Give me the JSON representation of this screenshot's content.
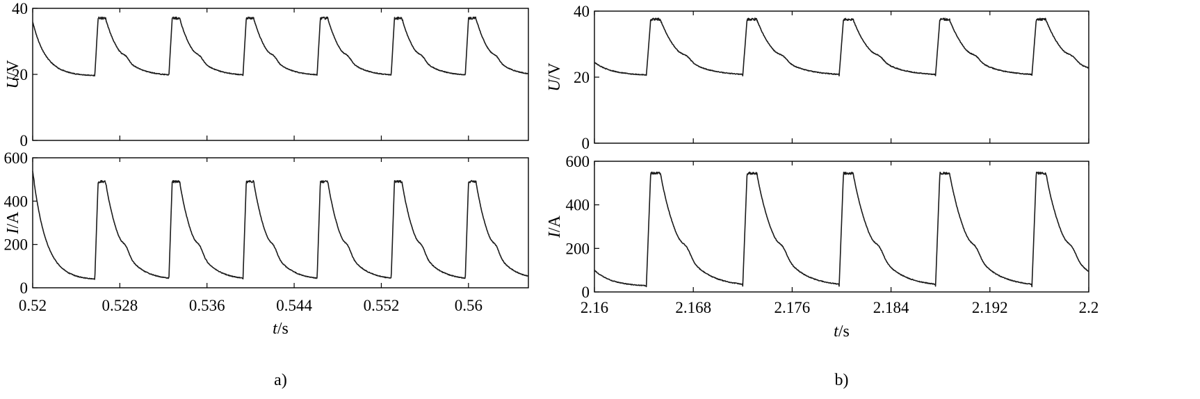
{
  "colors": {
    "trace": "#1a1a1a",
    "frame": "#000000",
    "background": "#ffffff"
  },
  "chart_data": [
    {
      "type": "line",
      "panel": "a)",
      "xlabel": {
        "italic": "t",
        "rest": "/s"
      },
      "x_ticks": [
        0.52,
        0.528,
        0.536,
        0.544,
        0.552,
        0.56
      ],
      "x_tick_labels": [
        "0.52",
        "0.528",
        "0.536",
        "0.544",
        "0.552",
        "0.56"
      ],
      "xlim": [
        0.52,
        0.5655
      ],
      "pulse_period": 0.0068,
      "pulse_rise_times": [
        0.5257,
        0.5325,
        0.5393,
        0.5461,
        0.5529,
        0.5597
      ],
      "subplots": [
        {
          "ylabel": {
            "italic": "U",
            "rest": "/V"
          },
          "ylim": [
            0,
            40
          ],
          "y_ticks": [
            0,
            20,
            40
          ],
          "y_tick_labels": [
            "0",
            "20",
            "40"
          ],
          "initial_value": 36,
          "base_value": 19.5,
          "peak_value": 37
        },
        {
          "ylabel": {
            "italic": "I",
            "rest": "/A"
          },
          "ylim": [
            0,
            600
          ],
          "y_ticks": [
            0,
            200,
            400,
            600
          ],
          "y_tick_labels": [
            "0",
            "200",
            "400",
            "600"
          ],
          "initial_value": 540,
          "base_value": 35,
          "peak_value": 490
        }
      ]
    },
    {
      "type": "line",
      "panel": "b)",
      "xlabel": {
        "italic": "t",
        "rest": "/s"
      },
      "x_ticks": [
        2.16,
        2.168,
        2.176,
        2.184,
        2.192,
        2.2
      ],
      "x_tick_labels": [
        "2.16",
        "2.168",
        "2.176",
        "2.184",
        "2.192",
        "2.2"
      ],
      "xlim": [
        2.16,
        2.2
      ],
      "pulse_period": 0.0078,
      "pulse_rise_times": [
        2.1642,
        2.172,
        2.1798,
        2.1876,
        2.1954
      ],
      "subplots": [
        {
          "ylabel": {
            "italic": "U",
            "rest": "/V"
          },
          "ylim": [
            0,
            40
          ],
          "y_ticks": [
            0,
            20,
            40
          ],
          "y_tick_labels": [
            "0",
            "20",
            "40"
          ],
          "initial_value": 24.5,
          "base_value": 20.5,
          "peak_value": 37.5
        },
        {
          "ylabel": {
            "italic": "I",
            "rest": "/A"
          },
          "ylim": [
            0,
            600
          ],
          "y_ticks": [
            0,
            200,
            400,
            600
          ],
          "y_tick_labels": [
            "0",
            "200",
            "400",
            "600"
          ],
          "initial_value": 100,
          "base_value": 25,
          "peak_value": 545
        }
      ]
    }
  ]
}
